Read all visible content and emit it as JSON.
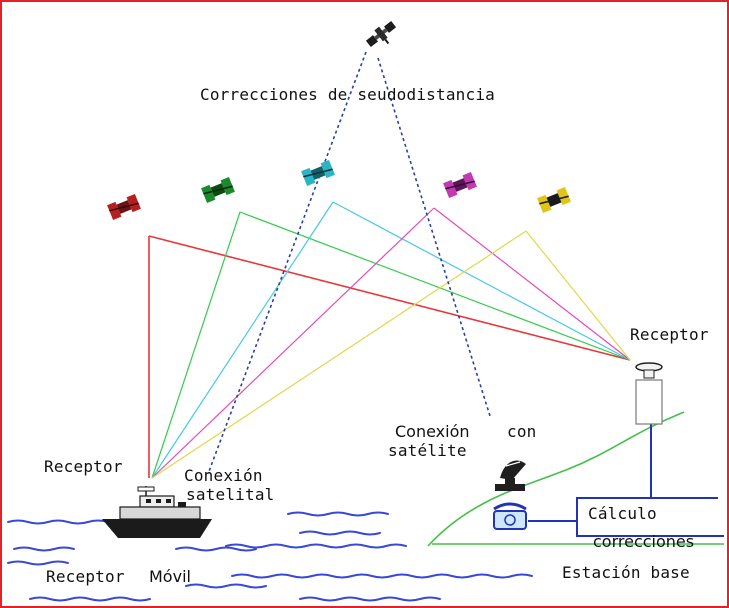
{
  "colors": {
    "border": "#e3222a",
    "red_line": "#e8363a",
    "green_line": "#33cc4c",
    "cyan_line": "#45c8e6",
    "magenta_line": "#e44ab4",
    "yellow_line": "#e2d84c",
    "dashed_link": "#2b3fa5",
    "ground": "#44c04a",
    "station_wire": "#2233b8",
    "water": "#3a48d8"
  },
  "satellites": {
    "top": {
      "icon": "satellite-icon"
    },
    "red": {
      "icon": "satellite-icon",
      "color": "#b51f22"
    },
    "green": {
      "icon": "satellite-icon",
      "color": "#1b8a2c"
    },
    "cyan": {
      "icon": "satellite-icon",
      "color": "#2bb4c4"
    },
    "magenta": {
      "icon": "satellite-icon",
      "color": "#c23ab2"
    },
    "yellow": {
      "icon": "satellite-icon",
      "color": "#e1c418"
    }
  },
  "labels": {
    "corrections": "Correcciones de seudodistancia",
    "receptor_base": "Receptor",
    "receptor_ship": "Receptor",
    "conexion_con_a": "Conexión",
    "conexion_con_b": "con",
    "satelite": "satélite",
    "conexion_satelital_1": "Conexión",
    "conexion_satelital_2": "satelital",
    "calculo": "Cálculo",
    "correcciones": "correcciones",
    "receptor_movil_a": "Receptor",
    "receptor_movil_b": "Móvil",
    "estacion_base": "Estación base"
  },
  "icons": {
    "ship": "ship-icon",
    "dish": "satellite-dish-icon",
    "telephone": "telephone-icon",
    "antenna": "antenna-icon"
  }
}
